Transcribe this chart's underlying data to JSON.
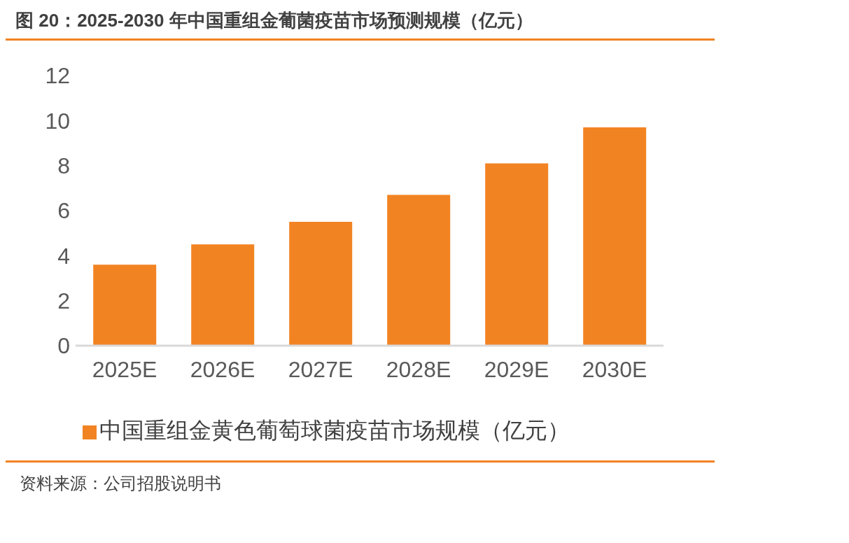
{
  "chart_data": {
    "type": "bar",
    "title": "图 20：2025-2030 年中国重组金葡菌疫苗市场预测规模（亿元）",
    "categories": [
      "2025E",
      "2026E",
      "2027E",
      "2028E",
      "2029E",
      "2030E"
    ],
    "series": [
      {
        "name": "中国重组金黄色葡萄球菌疫苗市场规模（亿元）",
        "color": "#f28322",
        "values": [
          3.6,
          4.5,
          5.5,
          6.7,
          8.1,
          9.7
        ]
      }
    ],
    "ylim": [
      0,
      12
    ],
    "yticks": [
      0,
      2,
      4,
      6,
      8,
      10,
      12
    ],
    "grid": false,
    "legend": "bottom",
    "annotations": [
      "资料来源：公司招股说明书"
    ]
  }
}
